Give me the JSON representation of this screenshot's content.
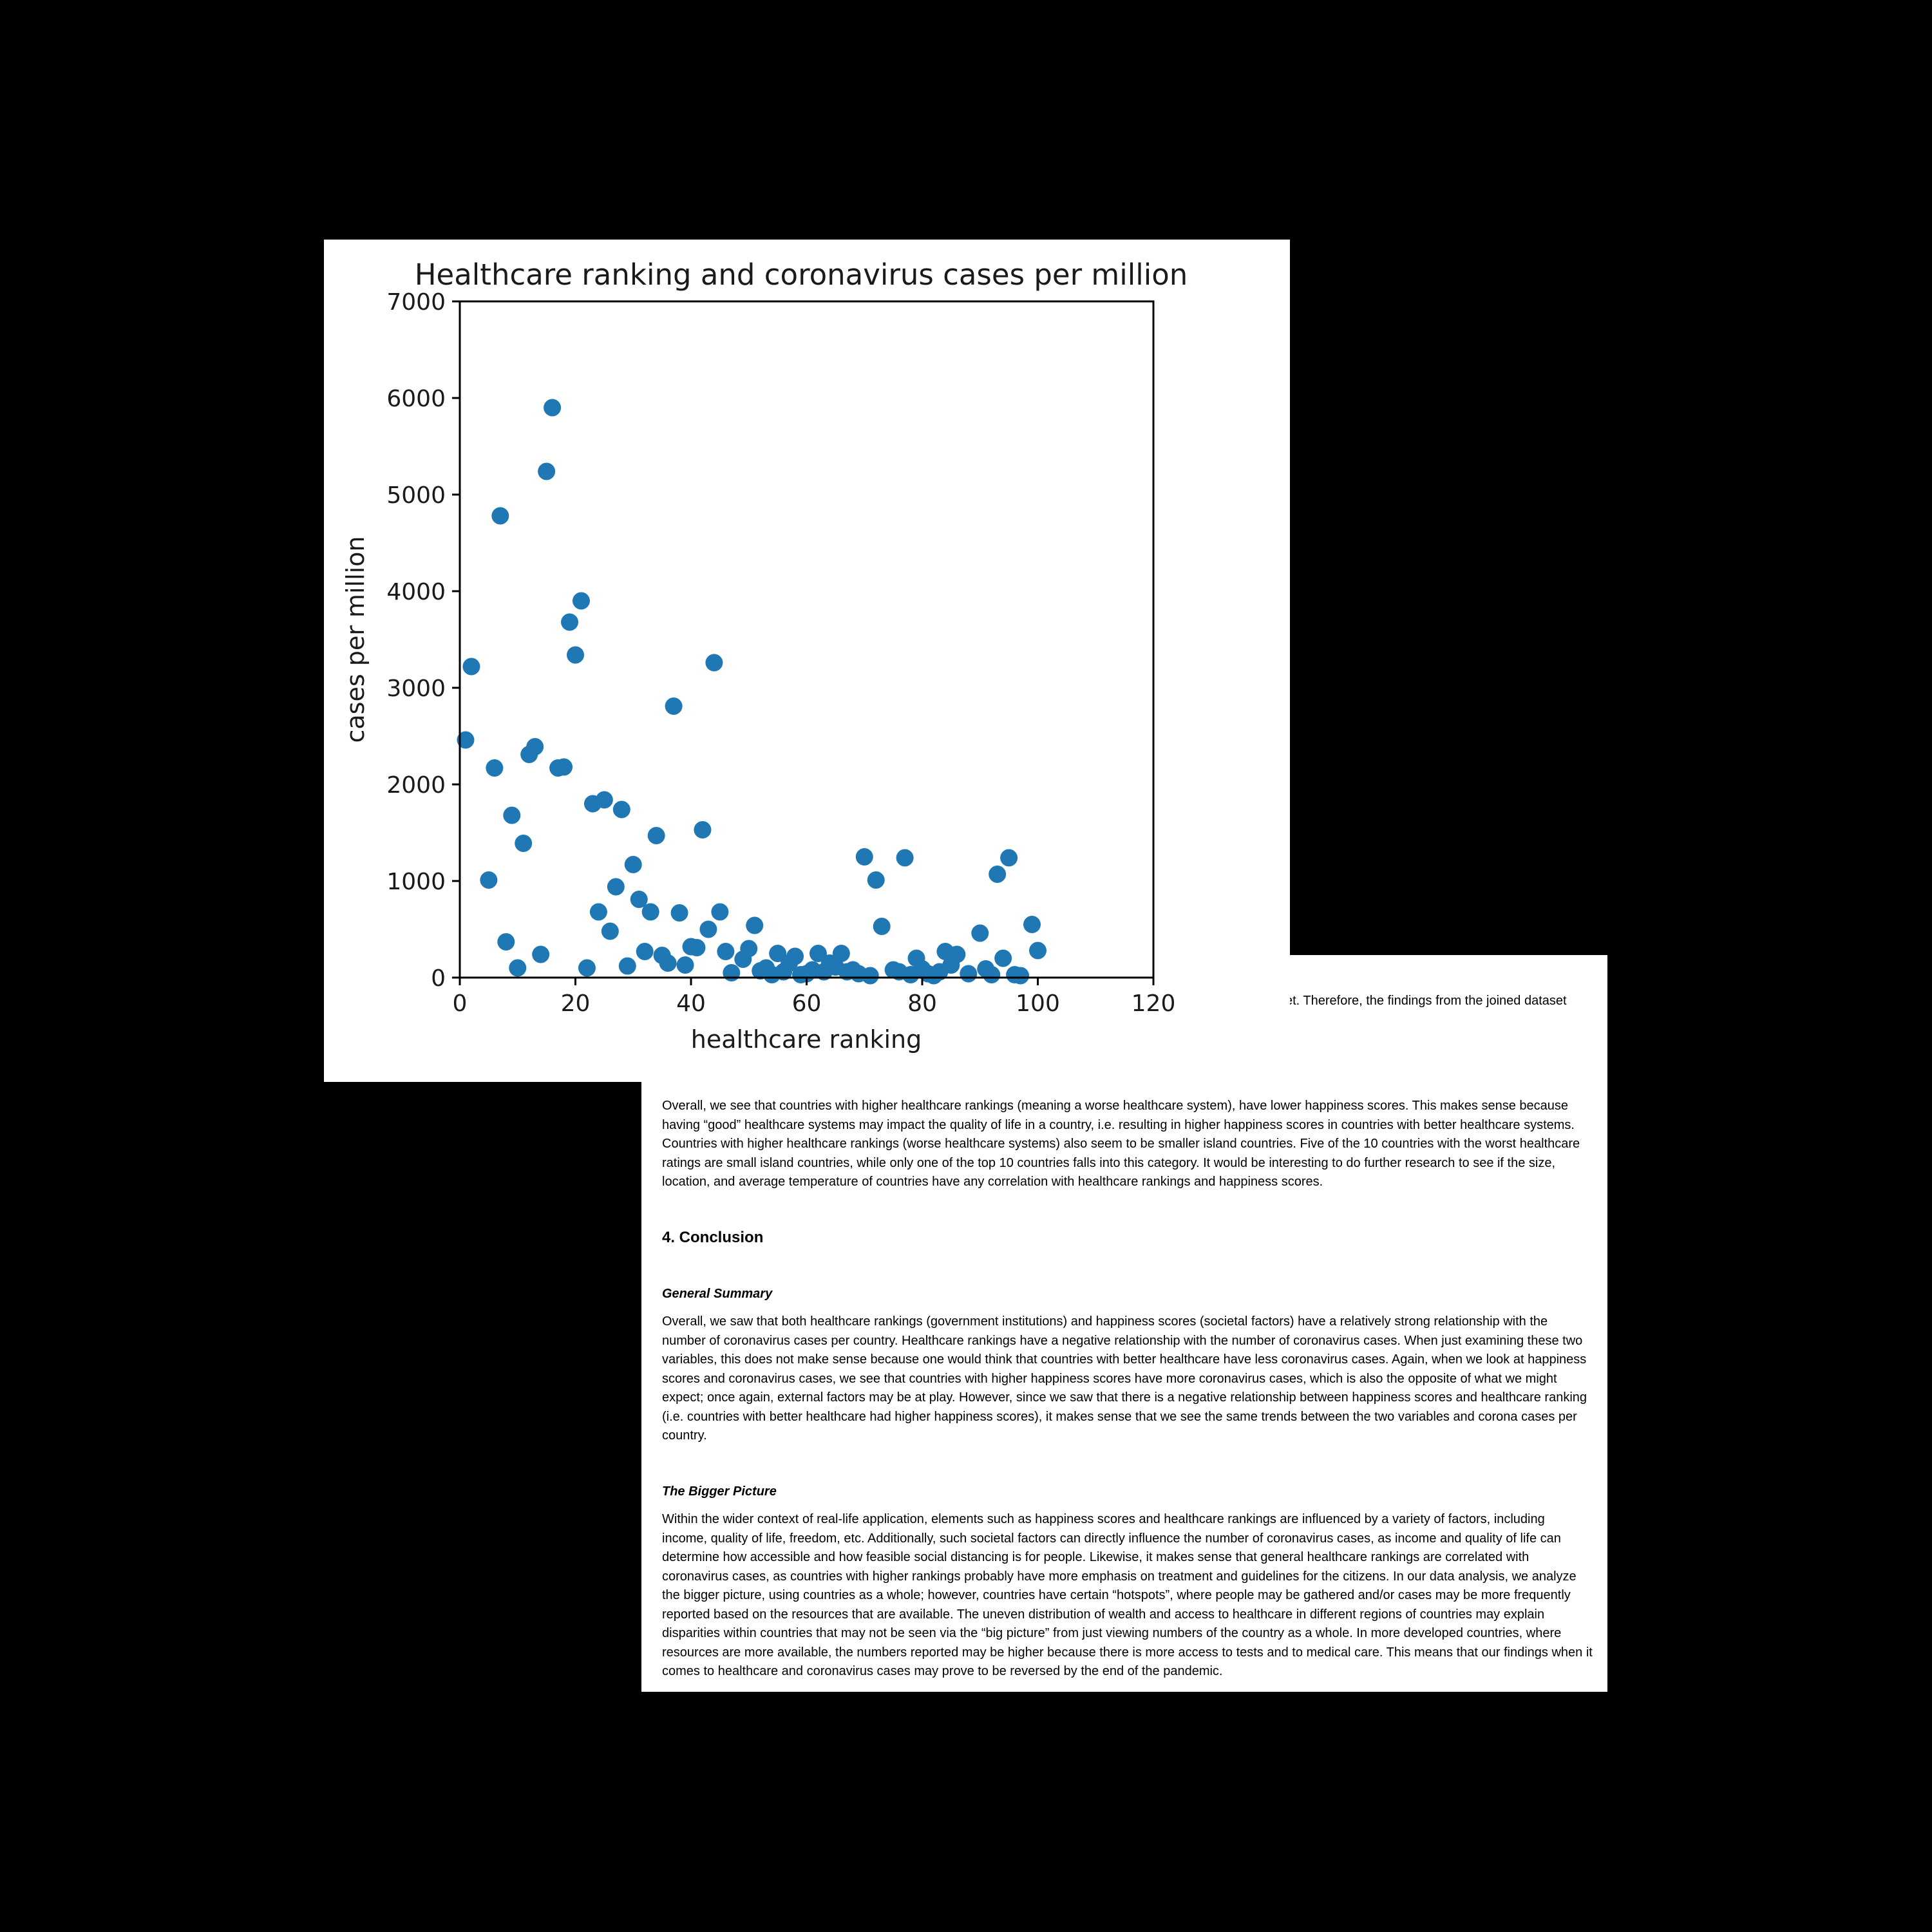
{
  "chart_data": {
    "type": "scatter",
    "title": "Healthcare ranking and coronavirus cases per million",
    "xlabel": "healthcare ranking",
    "ylabel": "cases per million",
    "xlim": [
      0,
      120
    ],
    "ylim": [
      0,
      7000
    ],
    "xticks": [
      "0",
      "20",
      "40",
      "60",
      "80",
      "100",
      "120"
    ],
    "yticks": [
      "0",
      "1000",
      "2000",
      "3000",
      "4000",
      "5000",
      "6000",
      "7000"
    ],
    "grid": false,
    "legend": "none",
    "marker_color": "#1f77b4",
    "points": [
      [
        1,
        2460
      ],
      [
        2,
        3220
      ],
      [
        5,
        1010
      ],
      [
        6,
        2170
      ],
      [
        7,
        4780
      ],
      [
        8,
        370
      ],
      [
        9,
        1680
      ],
      [
        10,
        100
      ],
      [
        11,
        1390
      ],
      [
        12,
        2310
      ],
      [
        13,
        2390
      ],
      [
        14,
        240
      ],
      [
        15,
        5240
      ],
      [
        16,
        5900
      ],
      [
        17,
        2170
      ],
      [
        18,
        2180
      ],
      [
        19,
        3680
      ],
      [
        20,
        3340
      ],
      [
        21,
        3900
      ],
      [
        22,
        100
      ],
      [
        23,
        1800
      ],
      [
        24,
        680
      ],
      [
        25,
        1840
      ],
      [
        26,
        480
      ],
      [
        27,
        940
      ],
      [
        28,
        1740
      ],
      [
        29,
        120
      ],
      [
        30,
        1170
      ],
      [
        31,
        810
      ],
      [
        32,
        270
      ],
      [
        33,
        680
      ],
      [
        34,
        1470
      ],
      [
        35,
        230
      ],
      [
        36,
        150
      ],
      [
        37,
        2810
      ],
      [
        38,
        670
      ],
      [
        39,
        130
      ],
      [
        40,
        320
      ],
      [
        41,
        310
      ],
      [
        42,
        1530
      ],
      [
        43,
        500
      ],
      [
        44,
        3260
      ],
      [
        45,
        680
      ],
      [
        46,
        270
      ],
      [
        47,
        50
      ],
      [
        49,
        190
      ],
      [
        50,
        300
      ],
      [
        51,
        540
      ],
      [
        52,
        70
      ],
      [
        53,
        100
      ],
      [
        54,
        30
      ],
      [
        55,
        250
      ],
      [
        56,
        60
      ],
      [
        57,
        150
      ],
      [
        58,
        220
      ],
      [
        59,
        30
      ],
      [
        60,
        40
      ],
      [
        61,
        80
      ],
      [
        62,
        250
      ],
      [
        63,
        60
      ],
      [
        64,
        150
      ],
      [
        65,
        110
      ],
      [
        66,
        250
      ],
      [
        67,
        60
      ],
      [
        68,
        80
      ],
      [
        69,
        40
      ],
      [
        70,
        1250
      ],
      [
        71,
        20
      ],
      [
        72,
        1010
      ],
      [
        73,
        530
      ],
      [
        75,
        80
      ],
      [
        76,
        60
      ],
      [
        77,
        1240
      ],
      [
        78,
        30
      ],
      [
        79,
        200
      ],
      [
        80,
        90
      ],
      [
        81,
        40
      ],
      [
        82,
        20
      ],
      [
        83,
        60
      ],
      [
        84,
        270
      ],
      [
        85,
        130
      ],
      [
        86,
        240
      ],
      [
        88,
        40
      ],
      [
        90,
        460
      ],
      [
        91,
        90
      ],
      [
        92,
        30
      ],
      [
        93,
        1070
      ],
      [
        94,
        200
      ],
      [
        95,
        1240
      ],
      [
        96,
        30
      ],
      [
        97,
        20
      ],
      [
        99,
        550
      ],
      [
        100,
        280
      ]
    ]
  },
  "document": {
    "fragment": "et. Therefore, the findings from the joined dataset",
    "para1": "Overall, we see that countries with higher healthcare rankings (meaning a worse healthcare system), have lower happiness scores. This makes sense because having “good” healthcare systems may impact the quality of life in a country, i.e. resulting in higher happiness scores in countries with better healthcare systems. Countries with higher healthcare rankings (worse healthcare systems) also seem to be smaller island countries. Five of the 10 countries with the worst healthcare ratings are small island countries, while only one of the top 10 countries falls into this category. It would be interesting to do further research to see if the size, location, and average temperature of countries have any correlation with healthcare rankings and happiness scores.",
    "section_heading": "4. Conclusion",
    "general_summary_heading": "General Summary",
    "para2": "Overall, we saw that both healthcare rankings (government institutions) and happiness scores (societal factors) have a relatively strong relationship with the number of coronavirus cases per country. Healthcare rankings have a negative relationship with the number of coronavirus cases. When just examining these two variables, this does not make sense because one would think that countries with better healthcare have less coronavirus cases. Again, when we look at happiness scores and coronavirus cases, we see that countries with higher happiness scores have more coronavirus cases, which is also the opposite of what we might expect; once again, external factors may be at play. However, since we saw that there is a negative relationship between happiness scores and healthcare ranking (i.e. countries with better healthcare had higher happiness scores), it makes sense that we see the same trends between the two variables and corona cases per country.",
    "bigger_picture_heading": "The Bigger Picture",
    "para3": "Within the wider context of real-life application, elements such as happiness scores and healthcare rankings are influenced by a variety of factors, including income, quality of life, freedom, etc. Additionally, such societal factors can directly influence the number of coronavirus cases, as income and quality of life can determine how accessible and how feasible social distancing is for people. Likewise, it makes sense that general healthcare rankings are correlated with coronavirus cases, as countries with higher rankings probably have more emphasis on treatment and guidelines for the citizens. In our data analysis, we analyze the bigger picture, using countries as a whole; however, countries have certain “hotspots”, where people may be gathered and/or cases may be more frequently reported based on the resources that are available. The uneven distribution of wealth and access to healthcare in different regions of countries may explain disparities within countries that may not be seen via the “big picture” from just viewing numbers of the country as a whole. In more developed countries, where resources are more available, the numbers reported may be higher because there is more access to tests and to medical care. This means that our findings when it comes to healthcare and coronavirus cases may prove to be reversed by the end of the pandemic."
  }
}
